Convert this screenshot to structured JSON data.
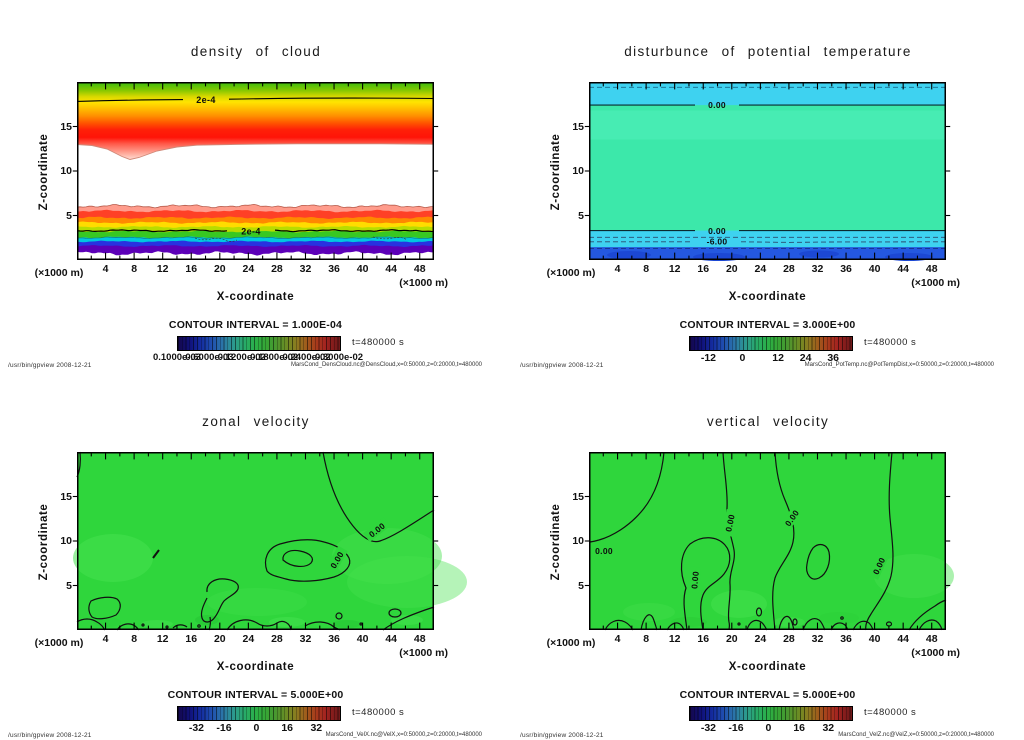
{
  "app": {
    "footer_left": "/usr/bin/gpview  2008-12-21",
    "generator": "/usr/bin/gpview",
    "date": "2008-12-21"
  },
  "colors": {
    "panel_green": "#2fd63c",
    "panel_green_light": "#46e14e",
    "teal_body": "#3ce8aa",
    "cyan_band": "#3ed2f0",
    "blue_band": "#2a62e8",
    "deep_blue": "#1d4fe0",
    "contour_line": "#000000"
  },
  "panels": [
    {
      "title": "density of cloud",
      "ylabel": "Z-coordinate",
      "xlabel": "X-coordinate",
      "unit": "(×1000 m)",
      "contour_interval_label": "CONTOUR INTERVAL = 1.000E-04",
      "time_label": "t=480000 s",
      "footer_right": "MarsCond_DensCloud.nc@DensCloud,x=0:50000,z=0:20000,t=480000",
      "xticks": [
        4,
        8,
        12,
        16,
        20,
        24,
        28,
        32,
        36,
        40,
        44,
        48
      ],
      "yticks": [
        5,
        10,
        15
      ],
      "cbar_labels": [
        "0.1000e-03",
        "0.6000e-03",
        "0.1200e-02",
        "0.1800e-02",
        "0.2400e-02",
        "0.3000e-02"
      ],
      "cbar_positions": [
        0,
        0.2,
        0.4,
        0.6,
        0.8,
        1
      ],
      "cbar_overlap": true,
      "contour_labels": [
        "2e-4",
        "2e-4"
      ]
    },
    {
      "title": "disturbunce of potential temperature",
      "ylabel": "Z-coordinate",
      "xlabel": "X-coordinate",
      "unit": "(×1000 m)",
      "contour_interval_label": "CONTOUR INTERVAL = 3.000E+00",
      "time_label": "t=480000 s",
      "footer_right": "MarsCond_PotTemp.nc@PotTempDist,x=0:50000,z=0:20000,t=480000",
      "xticks": [
        4,
        8,
        12,
        16,
        20,
        24,
        28,
        32,
        36,
        40,
        44,
        48
      ],
      "yticks": [
        5,
        10,
        15
      ],
      "cbar_labels": [
        "-12",
        "0",
        "12",
        "24",
        "36"
      ],
      "cbar_positions": [
        0.12,
        0.33,
        0.55,
        0.72,
        0.89
      ],
      "cbar_overlap": false,
      "contour_labels": [
        "0.00",
        "0.00",
        "-6.00"
      ]
    },
    {
      "title": "zonal velocity",
      "ylabel": "Z-coordinate",
      "xlabel": "X-coordinate",
      "unit": "(×1000 m)",
      "contour_interval_label": "CONTOUR INTERVAL = 5.000E+00",
      "time_label": "t=480000 s",
      "footer_right": "MarsCond_VelX.nc@VelX,x=0:50000,z=0:20000,t=480000",
      "xticks": [
        4,
        8,
        12,
        16,
        20,
        24,
        28,
        32,
        36,
        40,
        44,
        48
      ],
      "yticks": [
        5,
        10,
        15
      ],
      "cbar_labels": [
        "-32",
        "-16",
        "0",
        "16",
        "32"
      ],
      "cbar_positions": [
        0.12,
        0.29,
        0.49,
        0.68,
        0.86
      ],
      "cbar_overlap": false,
      "contour_labels": [
        "0.00",
        "0.00"
      ]
    },
    {
      "title": "vertical velocity",
      "ylabel": "Z-coordinate",
      "xlabel": "X-coordinate",
      "unit": "(×1000 m)",
      "contour_interval_label": "CONTOUR INTERVAL = 5.000E+00",
      "time_label": "t=480000 s",
      "footer_right": "MarsCond_VelZ.nc@VelZ,x=0:50000,z=0:20000,t=480000",
      "xticks": [
        4,
        8,
        12,
        16,
        20,
        24,
        28,
        32,
        36,
        40,
        44,
        48
      ],
      "yticks": [
        5,
        10,
        15
      ],
      "cbar_labels": [
        "-32",
        "-16",
        "0",
        "16",
        "32"
      ],
      "cbar_positions": [
        0.12,
        0.29,
        0.49,
        0.68,
        0.86
      ],
      "cbar_overlap": false,
      "contour_labels": [
        "0.00",
        "0.00",
        "0.00",
        "0.00",
        "0.00"
      ]
    }
  ],
  "chart_data": [
    {
      "type": "filled_contour",
      "title": "density of cloud",
      "xlabel": "X-coordinate (×1000 m)",
      "ylabel": "Z-coordinate (×1000 m)",
      "xlim": [
        0,
        50
      ],
      "ylim": [
        0,
        20
      ],
      "xticks": [
        4,
        8,
        12,
        16,
        20,
        24,
        28,
        32,
        36,
        40,
        44,
        48
      ],
      "yticks": [
        5,
        10,
        15
      ],
      "contour_interval": 0.0001,
      "time": "t=480000 s",
      "colorbar_tick_labels": [
        "0.1000e-03",
        "0.6000e-03",
        "0.1200e-02",
        "0.1800e-02",
        "0.2400e-02",
        "0.3000e-02"
      ],
      "labeled_contours": [
        {
          "value": "2e-4",
          "z": 18
        },
        {
          "value": "2e-4",
          "z": 3.3
        }
      ],
      "notes": "Two cloud layers: upper layer z≈13–20 (green top, max red near z=15, pink fading to white by z≈13, dip to z≈11.3 near x=7.5); lower rainbow-banded layer z≈0.5–6 (pink/red top, orange, yellow, green, cyan, blue, purple at base); white gap between layers."
    },
    {
      "type": "filled_contour",
      "title": "disturbunce of potential temperature",
      "xlabel": "X-coordinate (×1000 m)",
      "ylabel": "Z-coordinate (×1000 m)",
      "xlim": [
        0,
        50
      ],
      "ylim": [
        0,
        20
      ],
      "xticks": [
        4,
        8,
        12,
        16,
        20,
        24,
        28,
        32,
        36,
        40,
        44,
        48
      ],
      "yticks": [
        5,
        10,
        15
      ],
      "contour_interval": 3.0,
      "time": "t=480000 s",
      "colorbar_tick_labels": [
        "-12",
        "0",
        "12",
        "24",
        "36"
      ],
      "labeled_contours": [
        {
          "value": "0.00",
          "z": 17.4
        },
        {
          "value": "0.00",
          "z": 3.3
        },
        {
          "value": "-6.00",
          "z": 2.1
        }
      ],
      "notes": "Horizontally uniform layers: cyan band above 0.00 contour at z≈17.4 with dashed contour near z≈19.4; teal-green interior; below 0.00 contour at z≈3.3 a cyan band with dashed contours (−6.00) and deep blue below z≈1.5."
    },
    {
      "type": "filled_contour",
      "title": "zonal velocity",
      "xlabel": "X-coordinate (×1000 m)",
      "ylabel": "Z-coordinate (×1000 m)",
      "xlim": [
        0,
        50
      ],
      "ylim": [
        0,
        20
      ],
      "xticks": [
        4,
        8,
        12,
        16,
        20,
        24,
        28,
        32,
        36,
        40,
        44,
        48
      ],
      "yticks": [
        5,
        10,
        15
      ],
      "contour_interval": 5.0,
      "time": "t=480000 s",
      "colorbar_tick_labels": [
        "-32",
        "-16",
        "0",
        "16",
        "32"
      ],
      "labeled_contours": [
        {
          "value": "0.00",
          "x": 41,
          "z": 11
        },
        {
          "value": "0.00",
          "x": 34,
          "z": 7.5
        }
      ],
      "notes": "Nearly uniform green field near 0; 0.00 contour sweeping from top edge x≈34 to right edge z≈13; closed 0.00 loop with inner loop around x=27–38, z=4.5–10; small closed contours near bottom boundary."
    },
    {
      "type": "filled_contour",
      "title": "vertical velocity",
      "xlabel": "X-coordinate (×1000 m)",
      "ylabel": "Z-coordinate (×1000 m)",
      "xlim": [
        0,
        50
      ],
      "ylim": [
        0,
        20
      ],
      "xticks": [
        4,
        8,
        12,
        16,
        20,
        24,
        28,
        32,
        36,
        40,
        44,
        48
      ],
      "yticks": [
        5,
        10,
        15
      ],
      "contour_interval": 5.0,
      "time": "t=480000 s",
      "colorbar_tick_labels": [
        "-32",
        "-16",
        "0",
        "16",
        "32"
      ],
      "labeled_contours": [
        {
          "value": "0.00",
          "x": 1.5,
          "z": 9
        },
        {
          "value": "0.00",
          "x": 19,
          "z": 12.5
        },
        {
          "value": "0.00",
          "x": 27.5,
          "z": 13
        },
        {
          "value": "0.00",
          "x": 15,
          "z": 6.5
        },
        {
          "value": "0.00",
          "x": 42,
          "z": 8
        }
      ],
      "notes": "Nearly uniform green field near 0 with several quasi-vertical 0.00 contours descending from the top edge (x≈10.5, 19, 26, 42.5), a closed loop around x=13–19 z=5–10, and ragged 0.00 contours hugging the lower boundary."
    }
  ]
}
